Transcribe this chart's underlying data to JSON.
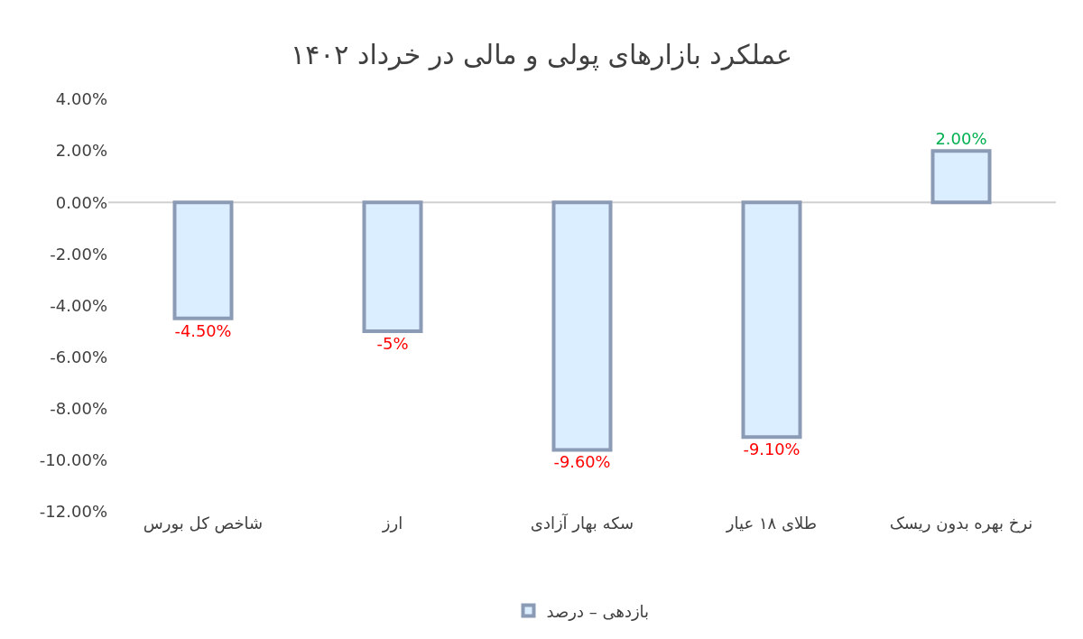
{
  "chart_data": {
    "type": "bar",
    "title": "عملکرد بازارهای پولی و مالی در خرداد ۱۴۰۲",
    "categories": [
      "شاخص کل بورس",
      "ارز",
      "سکه بهار آزادی",
      "طلای ۱۸ عیار",
      "نرخ بهره بدون ریسک"
    ],
    "series": [
      {
        "name": "بازدهی – درصد",
        "color": "#dbeeff",
        "values": [
          -4.5,
          -5,
          -9.6,
          -9.1,
          2
        ],
        "value_labels": [
          "-4.50%",
          "-5%",
          "-9.60%",
          "-9.10%",
          "2.00%"
        ]
      }
    ],
    "ylim": [
      -12,
      4
    ],
    "yticks": [
      {
        "value": -12,
        "label": "-12.00%"
      },
      {
        "value": -10,
        "label": "-10.00%"
      },
      {
        "value": -8,
        "label": "-8.00%"
      },
      {
        "value": -6,
        "label": "-6.00%"
      },
      {
        "value": -4,
        "label": "-4.00%"
      },
      {
        "value": -2,
        "label": "-2.00%"
      },
      {
        "value": 0,
        "label": "0.00%"
      },
      {
        "value": 2,
        "label": "2.00%"
      },
      {
        "value": 4,
        "label": "4.00%"
      }
    ],
    "ref_lines": [
      {
        "axis": "y",
        "value": 0,
        "color": "#d0d0d0"
      }
    ],
    "legend": "bottom"
  }
}
